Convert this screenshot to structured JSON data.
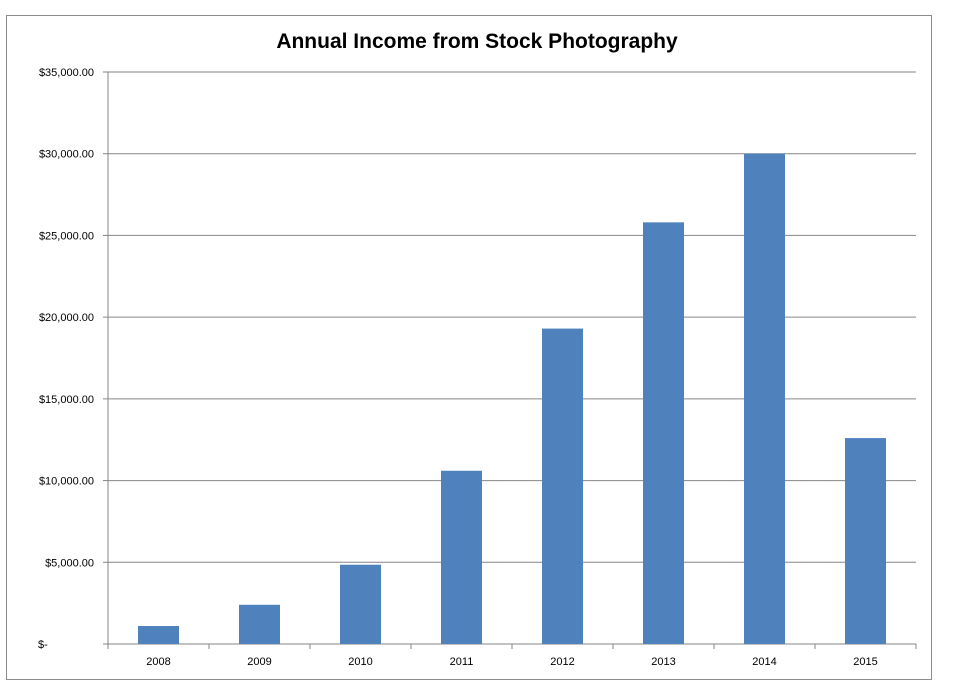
{
  "chart_data": {
    "type": "bar",
    "title": "Annual Income from Stock Photography",
    "xlabel": "",
    "ylabel": "",
    "categories": [
      "2008",
      "2009",
      "2010",
      "2011",
      "2012",
      "2013",
      "2014",
      "2015"
    ],
    "values": [
      1100,
      2400,
      4850,
      10600,
      19300,
      25800,
      30000,
      12600
    ],
    "ylim": [
      0,
      35000
    ],
    "yticks": [
      0,
      5000,
      10000,
      15000,
      20000,
      25000,
      30000,
      35000
    ],
    "ytick_labels": [
      "$-",
      "$5,000.00",
      "$10,000.00",
      "$15,000.00",
      "$20,000.00",
      "$25,000.00",
      "$30,000.00",
      "$35,000.00"
    ],
    "grid": "horizontal",
    "legend": "none",
    "bar_color": "#4F81BD",
    "grid_color": "#868686"
  }
}
